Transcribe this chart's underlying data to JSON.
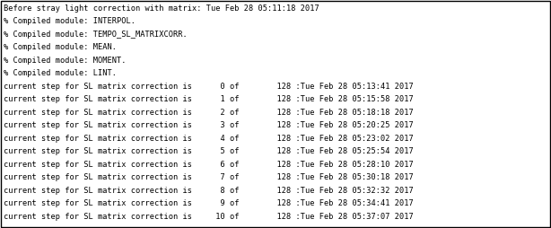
{
  "background_color": "#ffffff",
  "text_color": "#000000",
  "border_color": "#000000",
  "font_size": 6.2,
  "lines": [
    "Before stray light correction with matrix: Tue Feb 28 05:11:18 2017",
    "% Compiled module: INTERPOL.",
    "% Compiled module: TEMPO_SL_MATRIXCORR.",
    "% Compiled module: MEAN.",
    "% Compiled module: MOMENT.",
    "% Compiled module: LINT.",
    "current step for SL matrix correction is      0 of        128 :Tue Feb 28 05:13:41 2017",
    "current step for SL matrix correction is      1 of        128 :Tue Feb 28 05:15:58 2017",
    "current step for SL matrix correction is      2 of        128 :Tue Feb 28 05:18:18 2017",
    "current step for SL matrix correction is      3 of        128 :Tue Feb 28 05:20:25 2017",
    "current step for SL matrix correction is      4 of        128 :Tue Feb 28 05:23:02 2017",
    "current step for SL matrix correction is      5 of        128 :Tue Feb 28 05:25:54 2017",
    "current step for SL matrix correction is      6 of        128 :Tue Feb 28 05:28:10 2017",
    "current step for SL matrix correction is      7 of        128 :Tue Feb 28 05:30:18 2017",
    "current step for SL matrix correction is      8 of        128 :Tue Feb 28 05:32:32 2017",
    "current step for SL matrix correction is      9 of        128 :Tue Feb 28 05:34:41 2017",
    "current step for SL matrix correction is     10 of        128 :Tue Feb 28 05:37:07 2017"
  ],
  "fig_width": 6.14,
  "fig_height": 2.54,
  "dpi": 100
}
